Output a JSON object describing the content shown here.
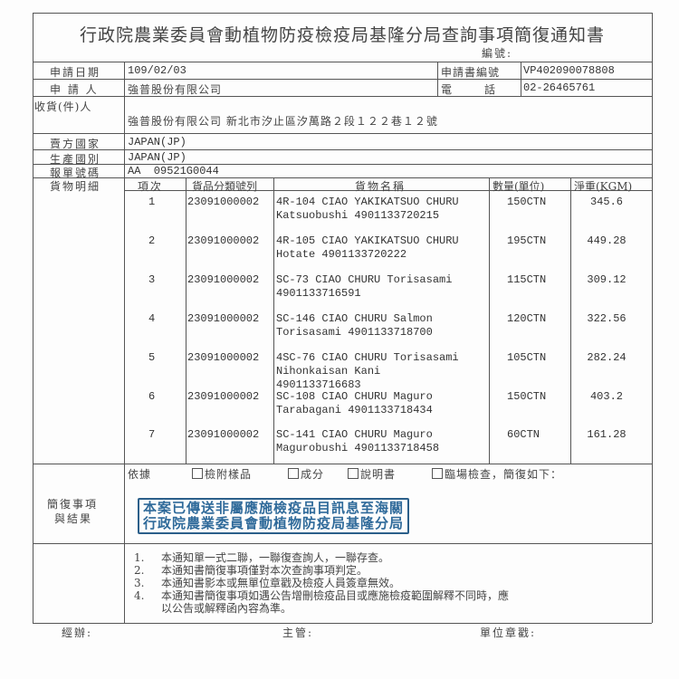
{
  "title": "行政院農業委員會動植物防疫檢疫局基隆分局查詢事項簡復通知書",
  "number_label": "編號:",
  "fields": {
    "date_label": "申請日期",
    "date": "109/02/03",
    "app_no_label": "申請書編號",
    "app_no": "VP402090078808",
    "applicant_label": "申 請 人",
    "applicant": "強普股份有限公司",
    "phone_label": "電　　　話",
    "phone": "02-26465761",
    "receiver_label": "收貨(件)人",
    "receiver": "強普股份有限公司 新北市汐止區汐萬路２段１２２巷１２號",
    "seller_country_label": "賣方國家",
    "seller_country": "JAPAN(JP)",
    "origin_label": "生產國別",
    "origin": "JAPAN(JP)",
    "declaration_label": "報單號碼",
    "declaration": "AA  09521G0044",
    "goods_label": "貨物明細"
  },
  "table": {
    "headers": [
      "項次",
      "貨品分類號列",
      "貨物名稱",
      "數量(單位)",
      "淨重(KGM)"
    ],
    "rows": [
      {
        "no": "1",
        "code": "23091000002",
        "name1": "4R-104 CIAO YAKIKATSUO CHURU",
        "name2": "Katsuobushi 4901133720215",
        "name3": "",
        "qty": "150CTN",
        "weight": "345.6"
      },
      {
        "no": "2",
        "code": "23091000002",
        "name1": "4R-105 CIAO YAKIKATSUO CHURU",
        "name2": "Hotate 4901133720222",
        "name3": "",
        "qty": "195CTN",
        "weight": "449.28"
      },
      {
        "no": "3",
        "code": "23091000002",
        "name1": "SC-73 CIAO CHURU Torisasami",
        "name2": "4901133716591",
        "name3": "",
        "qty": "115CTN",
        "weight": "309.12"
      },
      {
        "no": "4",
        "code": "23091000002",
        "name1": "SC-146 CIAO CHURU Salmon",
        "name2": "Torisasami 4901133718700",
        "name3": "",
        "qty": "120CTN",
        "weight": "322.56"
      },
      {
        "no": "5",
        "code": "23091000002",
        "name1": "4SC-76 CIAO CHURU Torisasami",
        "name2": "Nihonkaisan Kani",
        "name3": "4901133716683",
        "qty": "105CTN",
        "weight": "282.24"
      },
      {
        "no": "6",
        "code": "23091000002",
        "name1": "SC-108 CIAO CHURU Maguro",
        "name2": "Tarabagani 4901133718434",
        "name3": "",
        "qty": "150CTN",
        "weight": "403.2"
      },
      {
        "no": "7",
        "code": "23091000002",
        "name1": "SC-141 CIAO CHURU Maguro",
        "name2": "Magurobushi 4901133718458",
        "name3": "",
        "qty": "60CTN",
        "weight": "161.28"
      }
    ]
  },
  "result": {
    "label_line1": "簡復事項",
    "label_line2": "與結果",
    "basis": "依據",
    "checkboxes": [
      "檢附樣品",
      "成分",
      "說明書",
      "臨場檢查，簡復如下："
    ],
    "stamp_line1": "本案已傳送非屬應施檢疫品目訊息至海關",
    "stamp_line2": "行政院農業委員會動植物防疫局基隆分局",
    "stamp_color": "#2f6a9a"
  },
  "notes": [
    {
      "num": "1.",
      "text": "本通知單一式二聯，一聯復查詢人，一聯存查。"
    },
    {
      "num": "2.",
      "text": "本通知書簡復事項僅對本次查詢事項判定。"
    },
    {
      "num": "3.",
      "text": "本通知書影本或無單位章戳及檢疫人員簽章無效。"
    },
    {
      "num": "4.",
      "text": "本通知書簡復事項如遇公告增刪檢疫品目或應施檢疫範圍解釋不同時，應"
    },
    {
      "num": "",
      "text": "以公告或解釋函內容為準。"
    }
  ],
  "footer": {
    "handler": "經辦:",
    "supervisor": "主管:",
    "unit_seal": "單位章戳:"
  }
}
